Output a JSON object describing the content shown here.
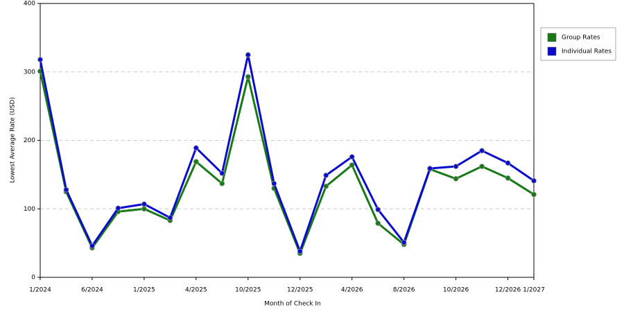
{
  "chart_data": {
    "type": "line",
    "x_label": "Month of Check In",
    "y_label": "Lowest Average Rate (USD)",
    "categories": [
      "1/2024",
      null,
      "6/2024",
      null,
      "1/2025",
      null,
      "4/2025",
      null,
      "10/2025",
      null,
      "12/2025",
      null,
      "4/2026",
      null,
      "8/2026",
      null,
      "10/2026",
      null,
      "12/2026",
      "1/2027"
    ],
    "series": [
      {
        "name": "Group Rates",
        "color": "#177a17",
        "values": [
          301,
          125,
          43,
          96,
          100,
          83,
          169,
          137,
          293,
          130,
          35,
          133,
          164,
          79,
          48,
          158,
          144,
          162,
          145,
          121
        ]
      },
      {
        "name": "Individual Rates",
        "color": "#0b0bcc",
        "values": [
          318,
          128,
          46,
          101,
          107,
          87,
          189,
          152,
          325,
          137,
          38,
          149,
          176,
          99,
          51,
          159,
          162,
          185,
          167,
          141
        ]
      }
    ],
    "ylim": [
      0,
      400
    ],
    "yticks": [
      0,
      100,
      200,
      300,
      400
    ],
    "grid": true,
    "legend": "right"
  }
}
